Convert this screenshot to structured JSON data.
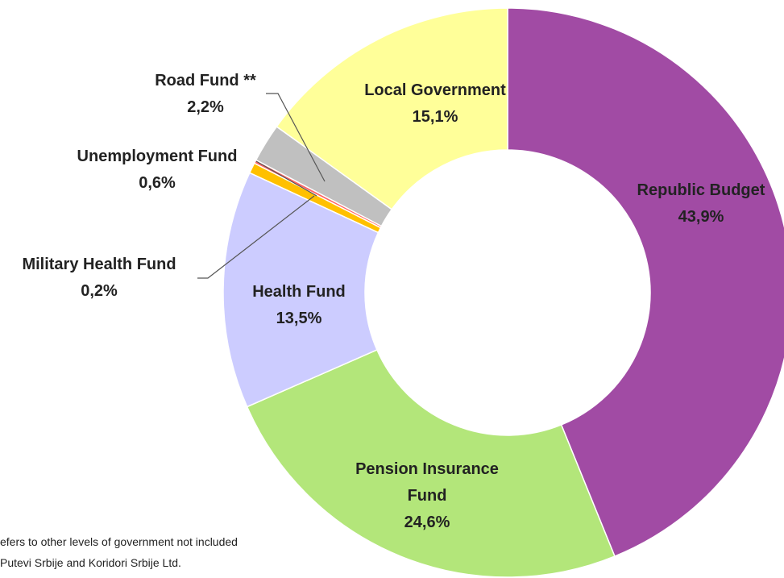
{
  "chart_data": {
    "type": "donut",
    "categories": [
      "Republic Budget",
      "Pension Insurance Fund",
      "Health Fund",
      "Unemployment Fund",
      "Military Health Fund",
      "Road Fund **",
      "Local Government"
    ],
    "values": [
      43.9,
      24.6,
      13.5,
      0.6,
      0.2,
      2.2,
      15.1
    ],
    "value_labels": [
      "43,9%",
      "24,6%",
      "13,5%",
      "0,6%",
      "0,2%",
      "2,2%",
      "15,1%"
    ],
    "colors": [
      "#a14ba4",
      "#b3e67a",
      "#ccccff",
      "#ffc000",
      "#ff6666",
      "#c0c0c0",
      "#ffff99"
    ],
    "footnotes": [
      "efers to other levels of government not included",
      "Putevi Srbije and Koridori Srbije Ltd."
    ]
  }
}
